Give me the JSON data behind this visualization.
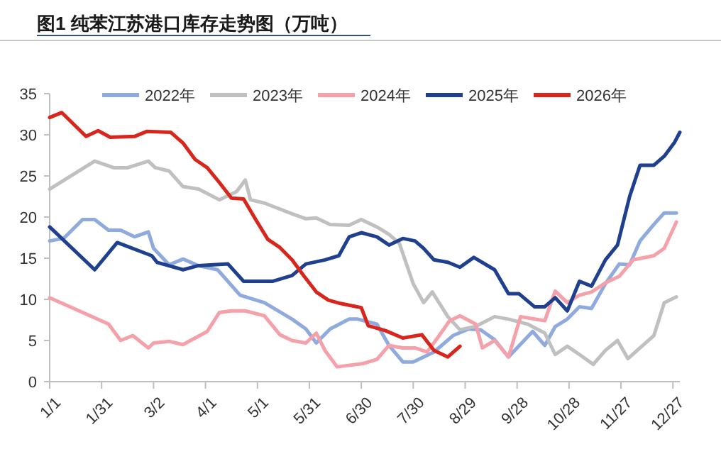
{
  "chart_data": {
    "type": "line",
    "title": "图1 纯苯江苏港口库存走势图（万吨）",
    "xlim": [
      "--01-01",
      "--12-31"
    ],
    "xticks": [
      {
        "value": "--01-01",
        "label": "1/1"
      },
      {
        "value": "--01-31",
        "label": "1/31"
      },
      {
        "value": "--03-02",
        "label": "3/2"
      },
      {
        "value": "--04-01",
        "label": "4/1"
      },
      {
        "value": "--05-01",
        "label": "5/1"
      },
      {
        "value": "--05-31",
        "label": "5/31"
      },
      {
        "value": "--06-30",
        "label": "6/30"
      },
      {
        "value": "--07-30",
        "label": "7/30"
      },
      {
        "value": "--08-29",
        "label": "8/29"
      },
      {
        "value": "--09-28",
        "label": "9/28"
      },
      {
        "value": "--10-28",
        "label": "10/28"
      },
      {
        "value": "--11-27",
        "label": "11/27"
      },
      {
        "value": "--12-27",
        "label": "12/27"
      }
    ],
    "ylim": [
      0,
      35
    ],
    "yticks": [
      0,
      5,
      10,
      15,
      20,
      25,
      30,
      35
    ],
    "legend": "top",
    "line_style": "solid",
    "series": [
      {
        "name": "2022年",
        "color": "#8faadc",
        "x": [
          "--01-01",
          "--01-09",
          "--01-20",
          "--01-27",
          "--02-04",
          "--02-11",
          "--02-19",
          "--02-27",
          "--03-02",
          "--03-11",
          "--03-19",
          "--03-28",
          "--04-08",
          "--04-21",
          "--05-05",
          "--05-21",
          "--05-29",
          "--06-04",
          "--06-12",
          "--06-23",
          "--06-28",
          "--07-09",
          "--07-16",
          "--07-24",
          "--07-30",
          "--08-11",
          "--08-22",
          "--08-31",
          "--09-07",
          "--09-15",
          "--09-23",
          "--10-07",
          "--10-14",
          "--10-20",
          "--10-27",
          "--11-03",
          "--11-10",
          "--11-18",
          "--11-26",
          "--12-02",
          "--12-08",
          "--12-16",
          "--12-22",
          "--12-29"
        ],
        "values": [
          17.1,
          17.4,
          19.7,
          19.7,
          18.4,
          18.4,
          17.6,
          18.2,
          16.2,
          14.2,
          14.9,
          14.1,
          13.6,
          10.5,
          9.6,
          7.6,
          6.4,
          4.7,
          6.4,
          7.6,
          7.6,
          7.0,
          4.4,
          2.4,
          2.4,
          3.6,
          5.6,
          6.4,
          6.3,
          5.1,
          3.0,
          6.1,
          4.4,
          6.7,
          7.6,
          9.1,
          8.9,
          11.9,
          14.3,
          14.2,
          17.1,
          19.1,
          20.5,
          20.5
        ]
      },
      {
        "name": "2023年",
        "color": "#c0c0c0",
        "x": [
          "--01-01",
          "--01-27",
          "--02-07",
          "--02-15",
          "--02-27",
          "--03-03",
          "--03-11",
          "--03-19",
          "--03-28",
          "--04-09",
          "--04-19",
          "--04-24",
          "--04-27",
          "--05-05",
          "--05-21",
          "--05-29",
          "--06-04",
          "--06-12",
          "--06-23",
          "--06-30",
          "--07-09",
          "--07-16",
          "--07-22",
          "--07-30",
          "--08-05",
          "--08-10",
          "--08-19",
          "--08-26",
          "--09-04",
          "--09-15",
          "--09-23",
          "--10-04",
          "--10-14",
          "--10-20",
          "--10-27",
          "--11-03",
          "--11-11",
          "--11-18",
          "--11-25",
          "--12-01",
          "--12-08",
          "--12-16",
          "--12-22",
          "--12-29"
        ],
        "values": [
          23.4,
          26.8,
          26.0,
          26.0,
          26.8,
          26.0,
          25.6,
          23.7,
          23.4,
          22.1,
          23.1,
          24.5,
          22.1,
          21.7,
          20.4,
          19.8,
          19.9,
          19.1,
          19.0,
          19.7,
          18.8,
          17.9,
          16.8,
          11.9,
          9.6,
          10.9,
          7.9,
          6.3,
          6.7,
          7.9,
          7.6,
          7.0,
          5.9,
          3.3,
          4.3,
          3.3,
          2.1,
          3.8,
          5.0,
          2.8,
          4.1,
          5.6,
          9.6,
          10.3
        ]
      },
      {
        "name": "2024年",
        "color": "#f4a1aa",
        "x": [
          "--01-01",
          "--02-04",
          "--02-11",
          "--02-18",
          "--02-27",
          "--03-02",
          "--03-11",
          "--03-19",
          "--04-02",
          "--04-09",
          "--04-16",
          "--04-24",
          "--05-05",
          "--05-14",
          "--05-21",
          "--05-29",
          "--06-04",
          "--06-09",
          "--06-16",
          "--07-01",
          "--07-09",
          "--07-16",
          "--07-24",
          "--07-31",
          "--08-07",
          "--08-13",
          "--08-20",
          "--08-26",
          "--09-04",
          "--09-08",
          "--09-15",
          "--09-23",
          "--09-30",
          "--10-14",
          "--10-20",
          "--10-27",
          "--11-03",
          "--11-10",
          "--11-18",
          "--11-26",
          "--12-04",
          "--12-16",
          "--12-22",
          "--12-29"
        ],
        "values": [
          10.2,
          7.0,
          5.0,
          5.6,
          4.1,
          4.7,
          4.9,
          4.5,
          6.1,
          8.4,
          8.6,
          8.6,
          8.0,
          5.7,
          5.0,
          4.7,
          5.9,
          3.8,
          1.8,
          2.2,
          2.7,
          4.4,
          4.1,
          4.1,
          3.6,
          5.3,
          7.4,
          8.0,
          7.0,
          4.1,
          5.0,
          3.0,
          7.9,
          7.4,
          11.0,
          9.6,
          10.5,
          10.9,
          12.0,
          12.8,
          14.8,
          15.3,
          16.2,
          19.4
        ]
      },
      {
        "name": "2025年",
        "color": "#1f3f8f",
        "x": [
          "--01-01",
          "--01-27",
          "--02-09",
          "--03-01",
          "--03-04",
          "--03-19",
          "--03-28",
          "--04-14",
          "--04-23",
          "--05-10",
          "--05-21",
          "--05-29",
          "--06-09",
          "--06-17",
          "--06-23",
          "--06-30",
          "--07-09",
          "--07-16",
          "--07-24",
          "--07-31",
          "--08-05",
          "--08-11",
          "--08-19",
          "--08-26",
          "--09-03",
          "--09-15",
          "--09-23",
          "--09-29",
          "--10-08",
          "--10-14",
          "--10-20",
          "--10-27",
          "--11-03",
          "--11-10",
          "--11-18",
          "--11-25",
          "--12-02",
          "--12-08",
          "--12-16",
          "--12-22",
          "--12-28",
          "--12-31"
        ],
        "values": [
          18.8,
          13.6,
          16.9,
          15.3,
          14.5,
          13.6,
          14.1,
          14.3,
          12.2,
          12.2,
          12.9,
          14.3,
          14.8,
          15.3,
          17.6,
          18.1,
          17.6,
          16.6,
          17.4,
          17.1,
          16.2,
          14.8,
          14.5,
          13.9,
          15.1,
          13.6,
          10.7,
          10.7,
          9.1,
          9.1,
          10.2,
          8.6,
          12.2,
          11.6,
          14.8,
          16.6,
          22.5,
          26.3,
          26.3,
          27.4,
          29.1,
          30.3
        ]
      },
      {
        "name": "2026年",
        "color": "#d9261c",
        "x": [
          "--01-01",
          "--01-08",
          "--01-22",
          "--01-29",
          "--02-05",
          "--02-19",
          "--02-26",
          "--03-12",
          "--03-19",
          "--03-26",
          "--04-02",
          "--04-09",
          "--04-16",
          "--04-23",
          "--04-30",
          "--05-07",
          "--05-14",
          "--05-21",
          "--05-28",
          "--06-04",
          "--06-11",
          "--06-18",
          "--06-25",
          "--06-30",
          "--07-04",
          "--07-14",
          "--07-24",
          "--08-04",
          "--08-11",
          "--08-19",
          "--08-26"
        ],
        "values": [
          32.1,
          32.7,
          29.8,
          30.5,
          29.7,
          29.8,
          30.4,
          30.3,
          29.0,
          27.0,
          26.0,
          24.2,
          22.3,
          22.2,
          19.7,
          17.3,
          16.3,
          14.8,
          12.8,
          10.9,
          9.9,
          9.5,
          9.2,
          9.0,
          6.8,
          6.2,
          5.3,
          5.7,
          3.8,
          3.0,
          4.3
        ]
      }
    ]
  }
}
